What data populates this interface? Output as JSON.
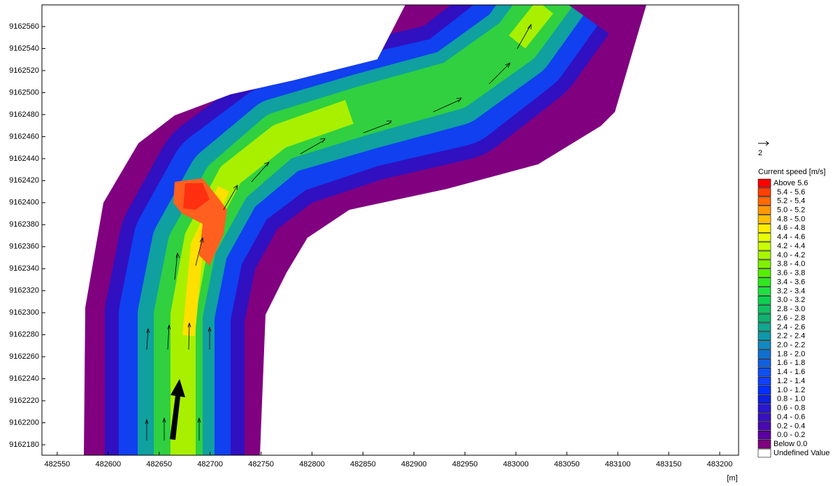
{
  "chart_data": {
    "type": "field",
    "xlim": [
      482535,
      483218.5
    ],
    "ylim": [
      9162170.5,
      9162579.7
    ],
    "xticks": [
      482550,
      482600,
      482650,
      482700,
      482750,
      482800,
      482850,
      482900,
      482950,
      483000,
      483050,
      483100,
      483150,
      483200
    ],
    "yticks": [
      9162180,
      9162200,
      9162220,
      9162240,
      9162260,
      9162280,
      9162300,
      9162320,
      9162340,
      9162360,
      9162380,
      9162400,
      9162420,
      9162440,
      9162460,
      9162480,
      9162500,
      9162520,
      9162540,
      9162560
    ],
    "x_unit": "[m]",
    "vector_scale": "2",
    "legend_title": "Current speed [m/s]",
    "legend": [
      {
        "label": "Above 5.6",
        "color": "#ff0000"
      },
      {
        "label": "5.4 - 5.6",
        "color": "#ff4000"
      },
      {
        "label": "5.2 - 5.4",
        "color": "#ff6a00"
      },
      {
        "label": "5.0 - 5.2",
        "color": "#ff9900"
      },
      {
        "label": "4.8 - 5.0",
        "color": "#ffc000"
      },
      {
        "label": "4.6 - 4.8",
        "color": "#ffee00"
      },
      {
        "label": "4.4 - 4.6",
        "color": "#e8ff00"
      },
      {
        "label": "4.2 - 4.4",
        "color": "#c8ff00"
      },
      {
        "label": "4.0 - 4.2",
        "color": "#a8f500"
      },
      {
        "label": "3.8 - 4.0",
        "color": "#80f000"
      },
      {
        "label": "3.6 - 3.8",
        "color": "#55ee00"
      },
      {
        "label": "3.4 - 3.6",
        "color": "#30e820"
      },
      {
        "label": "3.2 - 3.4",
        "color": "#20e040"
      },
      {
        "label": "3.0 - 3.2",
        "color": "#10d050"
      },
      {
        "label": "2.8 - 3.0",
        "color": "#10c060"
      },
      {
        "label": "2.6 - 2.8",
        "color": "#10b070"
      },
      {
        "label": "2.4 - 2.6",
        "color": "#10a890"
      },
      {
        "label": "2.2 - 2.4",
        "color": "#1098a8"
      },
      {
        "label": "2.0 - 2.2",
        "color": "#1088c0"
      },
      {
        "label": "1.8 - 2.0",
        "color": "#1070d0"
      },
      {
        "label": "1.6 - 1.8",
        "color": "#1060e0"
      },
      {
        "label": "1.4 - 1.6",
        "color": "#1050f0"
      },
      {
        "label": "1.2 - 1.4",
        "color": "#1040ff"
      },
      {
        "label": "1.0 - 1.2",
        "color": "#0030ff"
      },
      {
        "label": "0.8 - 1.0",
        "color": "#1020e0"
      },
      {
        "label": "0.6 - 0.8",
        "color": "#2818d0"
      },
      {
        "label": "0.4 - 0.6",
        "color": "#3810c0"
      },
      {
        "label": "0.2 - 0.4",
        "color": "#4a08b0"
      },
      {
        "label": "0.0 - 0.2",
        "color": "#5a00a0"
      },
      {
        "label": "Below 0.0",
        "color": "#800080"
      },
      {
        "label": "Undefined Value",
        "color": "#ffffff"
      }
    ]
  }
}
